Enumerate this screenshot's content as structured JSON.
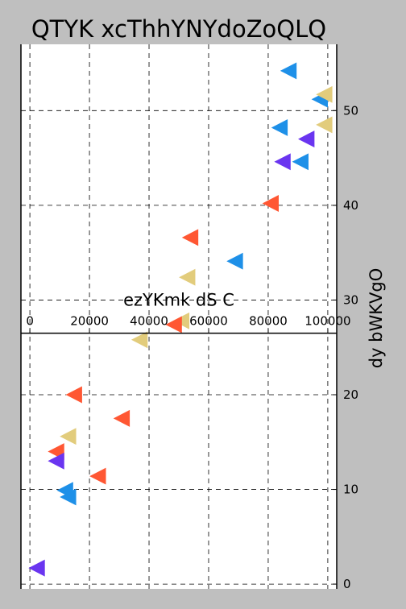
{
  "chart_data": {
    "type": "scatter",
    "title": "QTYK xcThhYNYdoZoQLQ",
    "xlabel": "ezYKmk dS  C",
    "ylabel": "dy bWKVgO",
    "xlim": [
      -3000,
      103000
    ],
    "ylim": [
      -0.5,
      57
    ],
    "x_ticks": [
      0,
      20000,
      40000,
      60000,
      80000,
      100000
    ],
    "x_tick_labels": [
      "0",
      "20000",
      "40000",
      "60000",
      "80000",
      "100000"
    ],
    "y_ticks": [
      0,
      10,
      20,
      30,
      40,
      50
    ],
    "y_tick_labels": [
      "0",
      "10",
      "20",
      "30",
      "40",
      "50"
    ],
    "x_axis_position": "spine crossing the plot at y ≈ 26.5, tick labels above it",
    "y_axis_position": "right",
    "grid": true,
    "grid_style": "dashed",
    "marker": "left-pointing triangle",
    "points": [
      {
        "x": 87000,
        "y": 54.2,
        "color": "#1e90e8"
      },
      {
        "x": 97500,
        "y": 51.2,
        "color": "#1e90e8"
      },
      {
        "x": 99000,
        "y": 51.7,
        "color": "#e2cc7c"
      },
      {
        "x": 99000,
        "y": 48.5,
        "color": "#e2cc7c"
      },
      {
        "x": 84000,
        "y": 48.2,
        "color": "#1e90e8"
      },
      {
        "x": 93000,
        "y": 47.0,
        "color": "#6a35f0"
      },
      {
        "x": 85000,
        "y": 44.6,
        "color": "#6a35f0"
      },
      {
        "x": 91000,
        "y": 44.6,
        "color": "#1e90e8"
      },
      {
        "x": 81000,
        "y": 40.2,
        "color": "#ff5733"
      },
      {
        "x": 54000,
        "y": 36.6,
        "color": "#ff5733"
      },
      {
        "x": 69000,
        "y": 34.1,
        "color": "#1e90e8"
      },
      {
        "x": 53000,
        "y": 32.4,
        "color": "#e2cc7c"
      },
      {
        "x": 51000,
        "y": 27.8,
        "color": "#e2cc7c"
      },
      {
        "x": 48500,
        "y": 27.4,
        "color": "#ff5733"
      },
      {
        "x": 37000,
        "y": 25.8,
        "color": "#e2cc7c"
      },
      {
        "x": 15000,
        "y": 20.0,
        "color": "#ff5733"
      },
      {
        "x": 31000,
        "y": 17.5,
        "color": "#ff5733"
      },
      {
        "x": 13000,
        "y": 15.6,
        "color": "#e2cc7c"
      },
      {
        "x": 9000,
        "y": 14.0,
        "color": "#ff5733"
      },
      {
        "x": 9000,
        "y": 13.0,
        "color": "#6a35f0"
      },
      {
        "x": 23000,
        "y": 11.4,
        "color": "#ff5733"
      },
      {
        "x": 12000,
        "y": 9.9,
        "color": "#1e90e8"
      },
      {
        "x": 13000,
        "y": 9.2,
        "color": "#1e90e8"
      },
      {
        "x": 2500,
        "y": 1.7,
        "color": "#6a35f0"
      }
    ]
  }
}
